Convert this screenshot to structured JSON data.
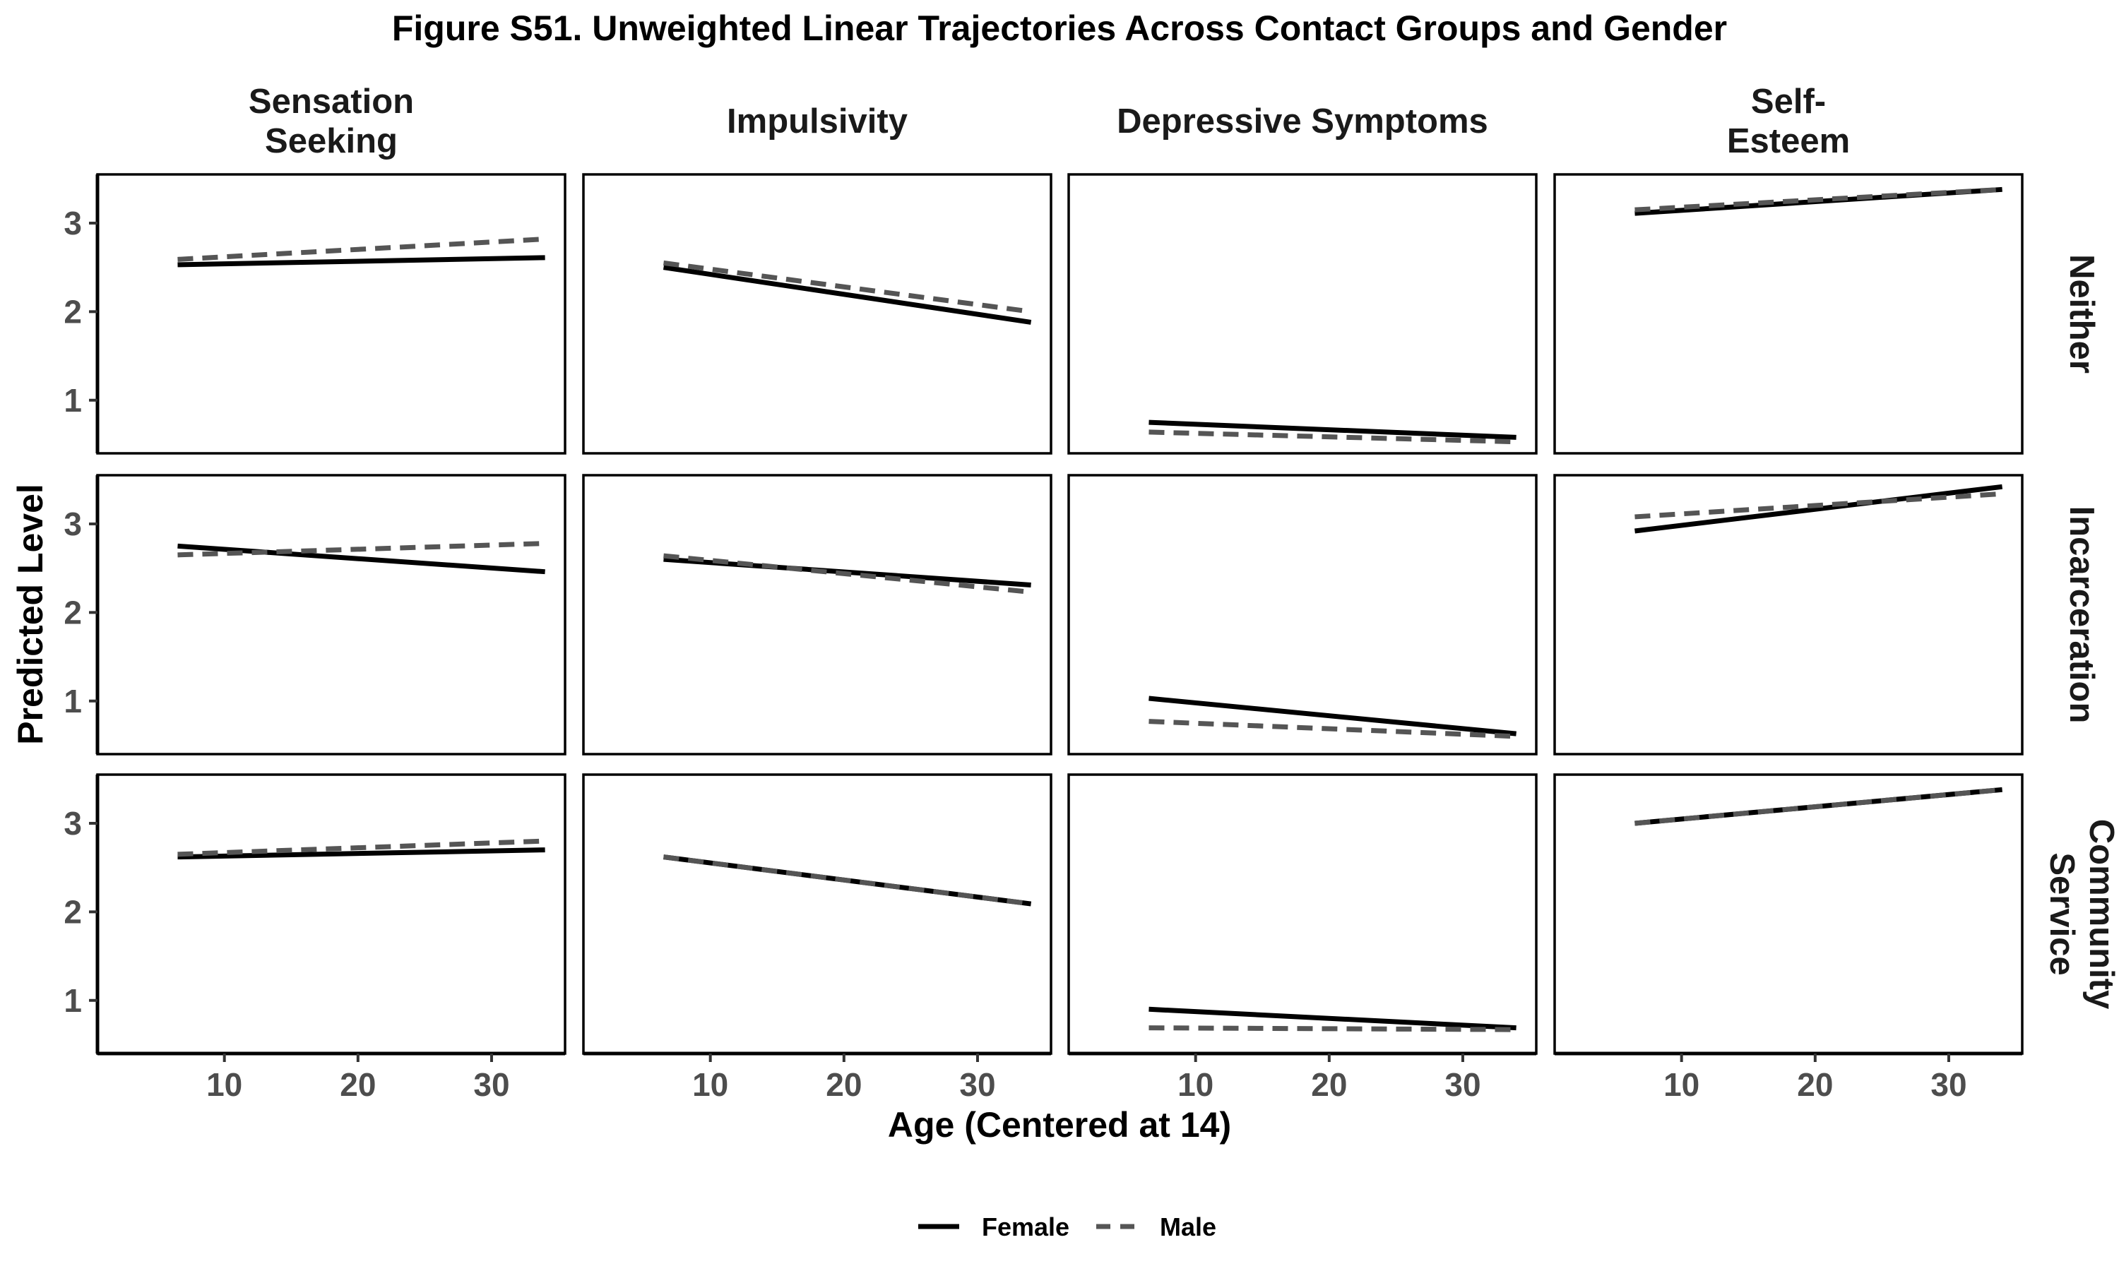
{
  "chart_data": {
    "type": "line",
    "title": "Figure S51. Unweighted Linear Trajectories Across Contact Groups and Gender",
    "xlabel": "Age (Centered at 14)",
    "ylabel": "Predicted Level",
    "xlim": [
      0.5,
      35.5
    ],
    "ylim": [
      0.4,
      3.55
    ],
    "x_ticks": [
      10,
      20,
      30
    ],
    "y_ticks": [
      1,
      2,
      3
    ],
    "grid": false,
    "legend_position": "bottom",
    "columns": [
      {
        "key": "ss",
        "label_lines": [
          "Sensation",
          "Seeking"
        ]
      },
      {
        "key": "imp",
        "label_lines": [
          "Impulsivity"
        ]
      },
      {
        "key": "dep",
        "label_lines": [
          "Depressive Symptoms"
        ]
      },
      {
        "key": "se",
        "label_lines": [
          "Self-",
          "Esteem"
        ]
      }
    ],
    "rows": [
      {
        "key": "neither",
        "label_lines": [
          "Neither"
        ]
      },
      {
        "key": "incarceration",
        "label_lines": [
          "Incarceration"
        ]
      },
      {
        "key": "community",
        "label_lines": [
          "Community",
          "Service"
        ]
      }
    ],
    "series": [
      {
        "name": "Female",
        "color": "#000000",
        "dash": "solid"
      },
      {
        "name": "Male",
        "color": "#555555",
        "dash": "dashed"
      }
    ],
    "x": [
      6.5,
      34
    ],
    "panels": [
      [
        {
          "Female": [
            2.53,
            2.61
          ],
          "Male": [
            2.59,
            2.82
          ]
        },
        {
          "Female": [
            2.5,
            1.88
          ],
          "Male": [
            2.55,
            2.0
          ]
        },
        {
          "Female": [
            0.75,
            0.58
          ],
          "Male": [
            0.64,
            0.53
          ]
        },
        {
          "Female": [
            3.11,
            3.38
          ],
          "Male": [
            3.15,
            3.38
          ]
        }
      ],
      [
        {
          "Female": [
            2.75,
            2.46
          ],
          "Male": [
            2.65,
            2.78
          ]
        },
        {
          "Female": [
            2.6,
            2.31
          ],
          "Male": [
            2.64,
            2.23
          ]
        },
        {
          "Female": [
            1.03,
            0.63
          ],
          "Male": [
            0.77,
            0.6
          ]
        },
        {
          "Female": [
            2.92,
            3.42
          ],
          "Male": [
            3.08,
            3.34
          ]
        }
      ],
      [
        {
          "Female": [
            2.62,
            2.7
          ],
          "Male": [
            2.65,
            2.8
          ]
        },
        {
          "Female": [
            2.62,
            2.09
          ],
          "Male": [
            2.62,
            2.09
          ]
        },
        {
          "Female": [
            0.9,
            0.69
          ],
          "Male": [
            0.69,
            0.67
          ]
        },
        {
          "Female": [
            3.0,
            3.38
          ],
          "Male": [
            3.0,
            3.38
          ]
        }
      ]
    ]
  }
}
